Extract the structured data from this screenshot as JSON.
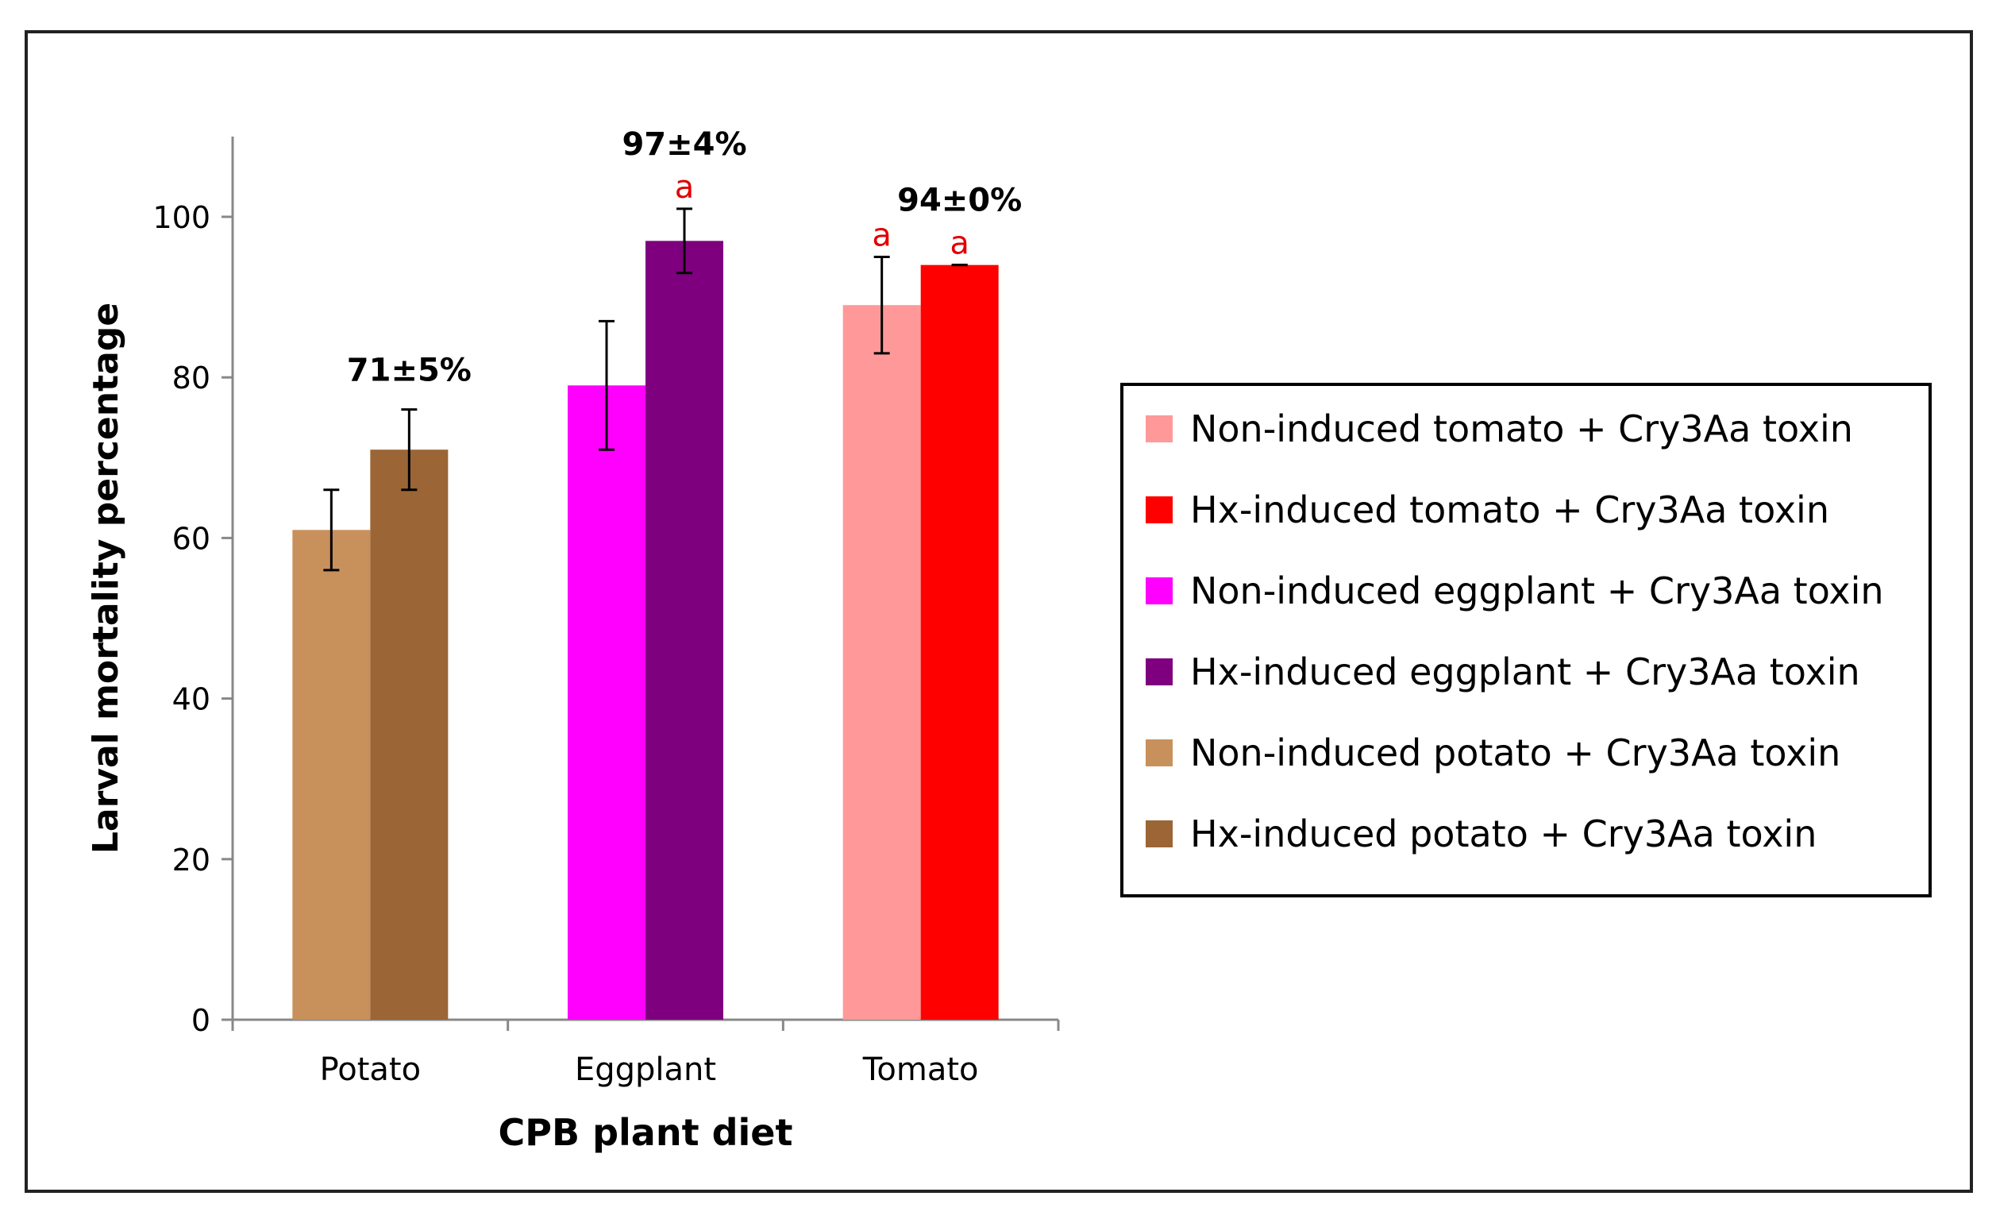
{
  "chart_data": {
    "type": "bar",
    "title": "",
    "xlabel": "CPB plant diet",
    "ylabel": "Larval mortality percentage",
    "ylim": [
      0,
      110
    ],
    "yticks": [
      "0",
      "20",
      "40",
      "60",
      "80",
      "100"
    ],
    "ytick_values": [
      0,
      20,
      40,
      60,
      80,
      100
    ],
    "grid": false,
    "legend_position": "right",
    "categories": [
      "Potato",
      "Eggplant",
      "Tomato"
    ],
    "bars": [
      {
        "category": "Potato",
        "legend_index": 4,
        "value": 61,
        "error": 5,
        "color": "#c8915b",
        "label": "",
        "letter": ""
      },
      {
        "category": "Potato",
        "legend_index": 5,
        "value": 71,
        "error": 5,
        "color": "#9b6535",
        "label": "71±5%",
        "letter": ""
      },
      {
        "category": "Eggplant",
        "legend_index": 2,
        "value": 79,
        "error": 8,
        "color": "#ff00ff",
        "label": "",
        "letter": ""
      },
      {
        "category": "Eggplant",
        "legend_index": 3,
        "value": 97,
        "error": 4,
        "color": "#7f007f",
        "label": "97±4%",
        "letter": "a"
      },
      {
        "category": "Tomato",
        "legend_index": 0,
        "value": 89,
        "error": 6,
        "color": "#ff9999",
        "label": "",
        "letter": "a"
      },
      {
        "category": "Tomato",
        "legend_index": 1,
        "value": 94,
        "error": 0,
        "color": "#ff0000",
        "label": "94±0%",
        "letter": "a"
      }
    ],
    "legend": [
      {
        "label": "Non-induced tomato + Cry3Aa toxin",
        "color": "#ff9999"
      },
      {
        "label": "Hx-induced tomato + Cry3Aa toxin",
        "color": "#ff0000"
      },
      {
        "label": "Non-induced eggplant + Cry3Aa toxin",
        "color": "#ff00ff"
      },
      {
        "label": "Hx-induced eggplant + Cry3Aa toxin",
        "color": "#7f007f"
      },
      {
        "label": "Non-induced potato + Cry3Aa toxin",
        "color": "#c8915b"
      },
      {
        "label": "Hx-induced potato + Cry3Aa toxin",
        "color": "#9b6535"
      }
    ],
    "letter_color": "#e00000"
  }
}
